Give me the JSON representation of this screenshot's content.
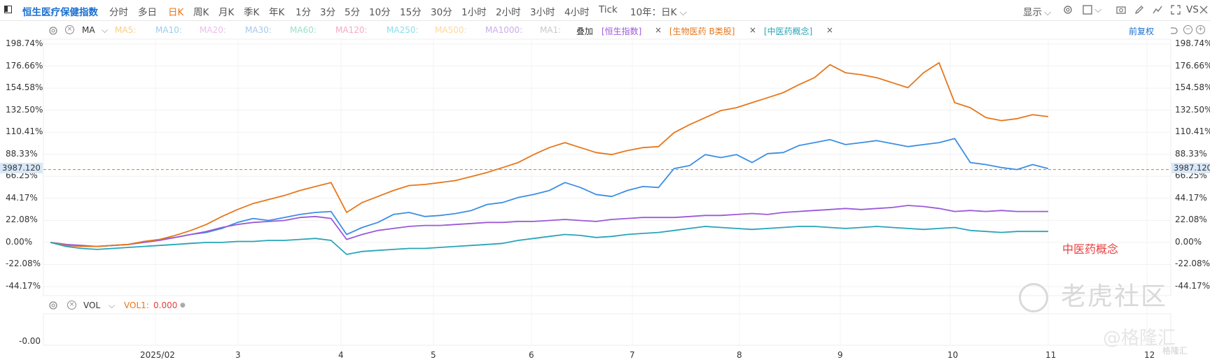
{
  "toolbar": {
    "title": "恒生医疗保健指数",
    "timeframes": [
      "分时",
      "多日",
      "日K",
      "周K",
      "月K",
      "季K",
      "年K",
      "1分",
      "3分",
      "5分",
      "10分",
      "15分",
      "30分",
      "1小时",
      "2小时",
      "3小时",
      "4小时",
      "Tick"
    ],
    "active_timeframe": "日K",
    "range_select": "10年：日K",
    "display_label": "显示",
    "vs_label": "VS"
  },
  "ma_bar": {
    "indicator": "MA",
    "ma_items": [
      {
        "label": "MA5:",
        "color": "#f5a623"
      },
      {
        "label": "MA10:",
        "color": "#4aa3df"
      },
      {
        "label": "MA20:",
        "color": "#d98ad9"
      },
      {
        "label": "MA30:",
        "color": "#5b9bd5"
      },
      {
        "label": "MA60:",
        "color": "#4cc3a0"
      },
      {
        "label": "MA120:",
        "color": "#f06292"
      },
      {
        "label": "MA250:",
        "color": "#26c6da"
      },
      {
        "label": "MA500:",
        "color": "#ffb74d"
      },
      {
        "label": "MA1000:",
        "color": "#9c6ad8"
      },
      {
        "label": "MA1:",
        "color": "#9e9e9e"
      }
    ],
    "overlay_label": "叠加",
    "overlays": [
      {
        "label": "[恒生指数]",
        "color": "#9b59d9"
      },
      {
        "label": "[生物医药 B类股]",
        "color": "#e8761a"
      },
      {
        "label": "[中医药概念]",
        "color": "#27a5b8"
      }
    ],
    "adjust_label": "前复权"
  },
  "price_badge": "3987.120",
  "annotation": "中医药概念",
  "volume_bar": {
    "indicator": "VOL",
    "vol1_label": "VOL1:",
    "vol1_value": "0.000",
    "axis_value": "-0.00"
  },
  "watermarks": {
    "brand1": "老虎社区",
    "brand2": "@格隆汇",
    "brand3": "格隆汇"
  },
  "chart_data": {
    "type": "line",
    "y_ticks": [
      "198.74%",
      "176.66%",
      "154.58%",
      "132.50%",
      "110.41%",
      "88.33%",
      "66.25%",
      "44.17%",
      "22.08%",
      "0.00%",
      "-22.08%",
      "-44.17%"
    ],
    "ylim": [
      -44.17,
      198.74
    ],
    "reference_line": 73.0,
    "x_ticks": [
      "2025/02",
      "3",
      "4",
      "5",
      "6",
      "7",
      "8",
      "9",
      "10",
      "11",
      "12"
    ],
    "colors": {
      "main": "#3a8ee6",
      "hsi": "#9b59d9",
      "bio": "#e8761a",
      "tcm": "#27a5b8",
      "ref": "#e8761a"
    },
    "series": [
      {
        "name": "恒生医疗保健指数",
        "color": "#3a8ee6",
        "values": [
          0,
          -2,
          -4,
          -4,
          -3,
          -2,
          1,
          3,
          5,
          8,
          10,
          14,
          20,
          24,
          22,
          25,
          28,
          30,
          31,
          8,
          15,
          20,
          28,
          30,
          26,
          27,
          29,
          32,
          38,
          40,
          45,
          48,
          52,
          60,
          55,
          48,
          46,
          52,
          56,
          55,
          74,
          77,
          88,
          85,
          88,
          80,
          89,
          90,
          97,
          100,
          103,
          98,
          100,
          102,
          99,
          96,
          98,
          100,
          104,
          80,
          78,
          75,
          73,
          78,
          74
        ]
      },
      {
        "name": "恒生指数",
        "color": "#9b59d9",
        "values": [
          0,
          -2,
          -3,
          -4,
          -3,
          -2,
          0,
          2,
          5,
          8,
          11,
          15,
          18,
          20,
          21,
          22,
          25,
          26,
          24,
          3,
          8,
          12,
          14,
          16,
          17,
          17,
          18,
          19,
          20,
          20,
          21,
          21,
          22,
          23,
          22,
          21,
          23,
          24,
          25,
          25,
          25,
          26,
          27,
          27,
          28,
          29,
          28,
          30,
          31,
          32,
          33,
          34,
          33,
          34,
          35,
          37,
          36,
          34,
          31,
          32,
          31,
          32,
          31,
          31,
          31
        ]
      },
      {
        "name": "生物医药 B类股",
        "color": "#e8761a",
        "values": [
          0,
          -3,
          -4,
          -4,
          -3,
          -2,
          1,
          3,
          7,
          12,
          18,
          26,
          33,
          39,
          43,
          47,
          52,
          56,
          60,
          30,
          40,
          46,
          52,
          57,
          58,
          60,
          62,
          66,
          70,
          75,
          80,
          88,
          95,
          100,
          95,
          90,
          88,
          92,
          95,
          96,
          110,
          118,
          125,
          132,
          135,
          140,
          145,
          150,
          158,
          165,
          178,
          170,
          168,
          165,
          160,
          155,
          170,
          180,
          140,
          135,
          125,
          122,
          124,
          128,
          126
        ]
      },
      {
        "name": "中医药概念",
        "color": "#27a5b8",
        "values": [
          0,
          -4,
          -6,
          -7,
          -6,
          -5,
          -4,
          -3,
          -2,
          -1,
          0,
          0,
          1,
          1,
          2,
          2,
          3,
          4,
          2,
          -12,
          -9,
          -8,
          -7,
          -6,
          -6,
          -5,
          -4,
          -3,
          -2,
          -1,
          2,
          4,
          6,
          8,
          7,
          5,
          6,
          8,
          9,
          10,
          12,
          14,
          16,
          15,
          14,
          13,
          14,
          15,
          16,
          16,
          15,
          14,
          15,
          16,
          15,
          14,
          13,
          14,
          15,
          12,
          11,
          10,
          11,
          11,
          11
        ]
      }
    ]
  }
}
